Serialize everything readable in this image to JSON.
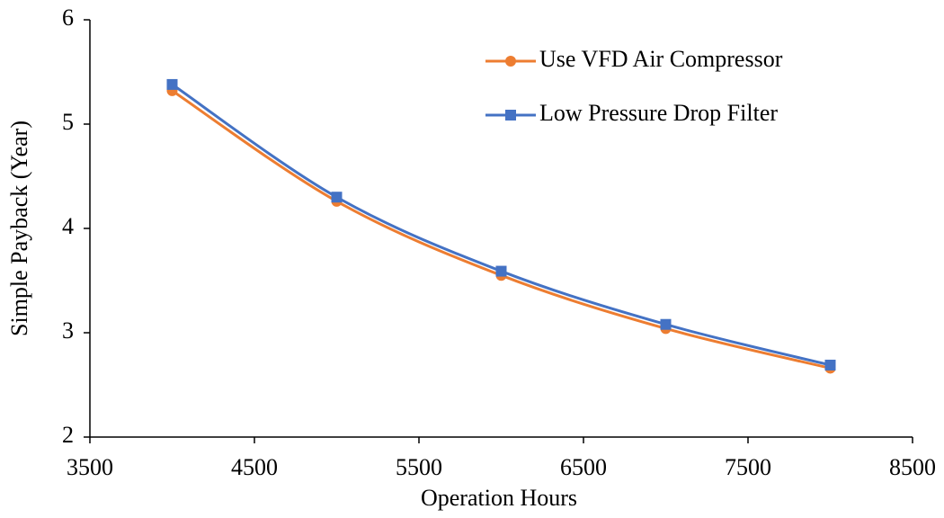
{
  "chart_data": {
    "type": "line",
    "x_label": "Operation Hours",
    "y_label": "Simple Payback (Year)",
    "x": [
      4000,
      5000,
      6000,
      7000,
      8000
    ],
    "series": [
      {
        "name": "Use VFD Air Compressor",
        "color": "#ed7d31",
        "marker": "circle",
        "values": [
          5.32,
          4.26,
          3.55,
          3.04,
          2.66
        ]
      },
      {
        "name": "Low Pressure Drop Filter",
        "color": "#4472c4",
        "marker": "square",
        "values": [
          5.38,
          4.3,
          3.59,
          3.08,
          2.69
        ]
      }
    ],
    "xlim": [
      3500,
      8500
    ],
    "xticks": [
      3500,
      4500,
      5500,
      6500,
      7500,
      8500
    ],
    "ylim": [
      2,
      6
    ],
    "yticks": [
      2,
      3,
      4,
      5,
      6
    ],
    "grid": false,
    "legend": "top-right"
  }
}
